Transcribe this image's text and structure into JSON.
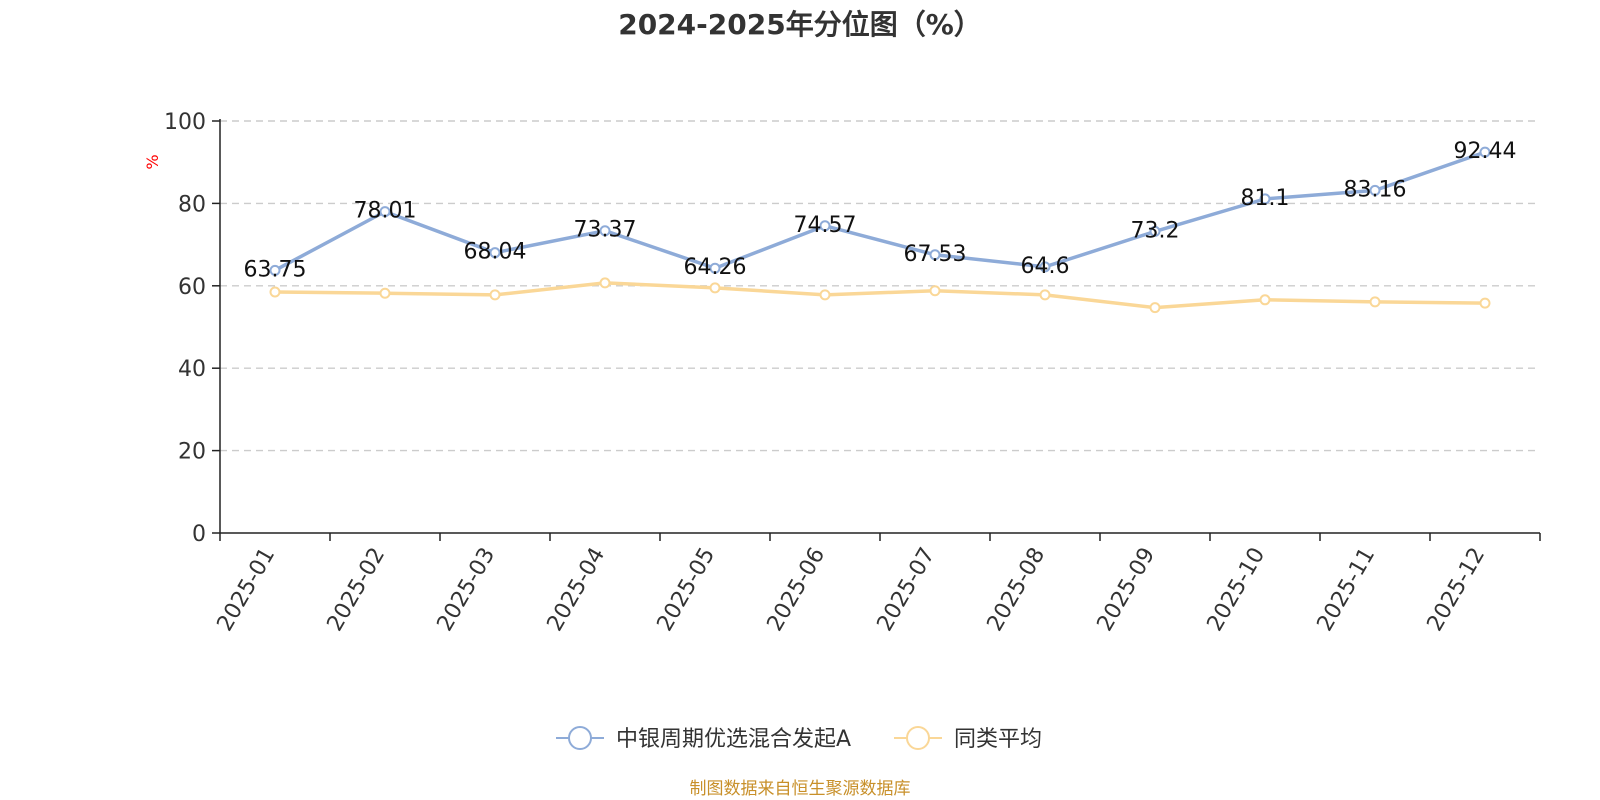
{
  "chart_data": {
    "type": "line",
    "title": "2024-2025年分位图（%）",
    "ylabel": "%",
    "categories": [
      "2025-01",
      "2025-02",
      "2025-03",
      "2025-04",
      "2025-05",
      "2025-06",
      "2025-07",
      "2025-08",
      "2025-09",
      "2025-10",
      "2025-11",
      "2025-12"
    ],
    "ylim": [
      0,
      100
    ],
    "yticks": [
      0,
      20,
      40,
      60,
      80,
      100
    ],
    "grid": true,
    "legend_position": "bottom",
    "series": [
      {
        "name": "中银周期优选混合发起A",
        "color": "#8eabd8",
        "show_labels": true,
        "values": [
          63.75,
          78.01,
          68.04,
          73.37,
          64.26,
          74.57,
          67.53,
          64.6,
          73.2,
          81.1,
          83.16,
          92.44
        ]
      },
      {
        "name": "同类平均",
        "color": "#fad797",
        "show_labels": false,
        "values": [
          58.5,
          58.2,
          57.8,
          60.7,
          59.5,
          57.8,
          58.8,
          57.8,
          54.7,
          56.6,
          56.1,
          55.8
        ]
      }
    ],
    "source": "制图数据来自恒生聚源数据库",
    "colors": {
      "axis": "#222222",
      "grid": "#cccccc",
      "unit": "#ff0000",
      "source": "#c8902a"
    }
  }
}
